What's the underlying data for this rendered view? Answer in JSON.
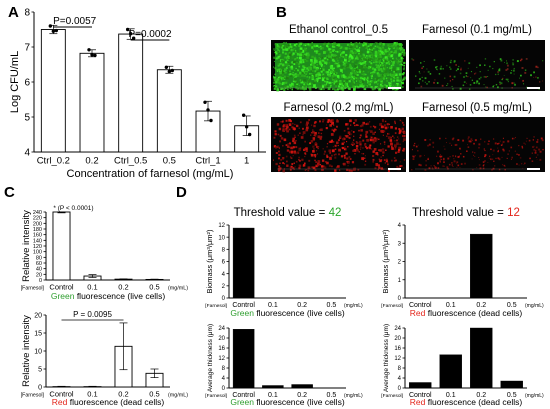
{
  "panel_letters": {
    "A": "A",
    "B": "B",
    "C": "C",
    "D": "D"
  },
  "chart_data": [
    {
      "id": "A",
      "type": "bar",
      "categories": [
        "Ctrl_0.2",
        "0.2",
        "Ctrl_0.5",
        "0.5",
        "Ctrl_1",
        "1"
      ],
      "values": [
        7.5,
        6.82,
        7.37,
        6.35,
        5.17,
        4.75
      ],
      "errors": [
        0.12,
        0.1,
        0.15,
        0.1,
        0.28,
        0.28
      ],
      "points": [
        [
          7.6,
          7.45,
          7.47
        ],
        [
          6.92,
          6.78,
          6.76
        ],
        [
          7.5,
          7.38,
          7.25
        ],
        [
          6.42,
          6.3,
          6.33
        ],
        [
          5.42,
          5.2,
          4.9
        ],
        [
          5.05,
          4.72,
          4.5
        ]
      ],
      "xlabel": "Concentration of farnesol (mg/mL)",
      "ylabel": "Log CFU/mL",
      "ylim": [
        4,
        8
      ],
      "yticks": [
        4,
        5,
        6,
        7,
        8
      ],
      "annotations": [
        "P=0.0057",
        "P=0.0002"
      ]
    },
    {
      "id": "C-top",
      "type": "bar",
      "prefix": "[Farnesol]",
      "categories": [
        "Control",
        "0.1",
        "0.2",
        "0.5"
      ],
      "unit": "(mg/mL)",
      "values": [
        240,
        14,
        3,
        2
      ],
      "errors": [
        3,
        5,
        1,
        1
      ],
      "ylabel": "Relative intensity",
      "ylim": [
        0,
        240
      ],
      "yticks": [
        0,
        20,
        40,
        60,
        80,
        100,
        120,
        140,
        160,
        180,
        200,
        220,
        240
      ],
      "xlabel_colored": "Green",
      "xlabel_rest": " fluorescence (live cells)",
      "annotation": "* (P < 0.0001)"
    },
    {
      "id": "C-bottom",
      "type": "bar",
      "prefix": "[Farnesol]",
      "categories": [
        "Control",
        "0.1",
        "0.2",
        "0.5"
      ],
      "unit": "(mg/mL)",
      "values": [
        0.1,
        0.1,
        11.3,
        3.8
      ],
      "errors": [
        0.1,
        0.1,
        6.5,
        1.2
      ],
      "ylabel": "Relative intensity",
      "ylim": [
        0,
        20
      ],
      "yticks": [
        0,
        5,
        10,
        15,
        20
      ],
      "xlabel_colored": "Red",
      "xlabel_rest": " fluorescence (dead cells)",
      "annotation": "P = 0.0095"
    },
    {
      "id": "D-left-top",
      "type": "bar",
      "title_prefix": "Threshold value = ",
      "title_value": "42",
      "prefix": "[Farnesol]",
      "categories": [
        "Control",
        "0.1",
        "0.2",
        "0.5"
      ],
      "unit": "(mg/mL)",
      "values": [
        11.5,
        0.0,
        0.0,
        0.0
      ],
      "ylabel": "Biomass (μm³/μm²)",
      "ylim": [
        0,
        12
      ],
      "yticks": [
        0,
        2,
        4,
        6,
        8,
        10,
        12
      ],
      "xlabel_colored": "Green",
      "xlabel_rest": " fluorescence (live cells)"
    },
    {
      "id": "D-left-bottom",
      "type": "bar",
      "prefix": "[Farnesol]",
      "categories": [
        "Control",
        "0.1",
        "0.2",
        "0.5"
      ],
      "unit": "(mg/mL)",
      "values": [
        23.5,
        1.0,
        1.4,
        0.0
      ],
      "ylabel": "Average thickness (μm)",
      "ylim": [
        0,
        24
      ],
      "yticks": [
        0,
        4,
        8,
        12,
        16,
        20,
        24
      ],
      "xlabel_colored": "Green",
      "xlabel_rest": " fluorescence (live cells)"
    },
    {
      "id": "D-right-top",
      "type": "bar",
      "title_prefix": "Threshold value = ",
      "title_value": "12",
      "prefix": "[Farnesol]",
      "categories": [
        "Control",
        "0.1",
        "0.2",
        "0.5"
      ],
      "unit": "(mg/mL)",
      "values": [
        0.0,
        0.0,
        3.5,
        0.0
      ],
      "ylabel": "Biomass (μm³/μm²)",
      "ylim": [
        0,
        4
      ],
      "yticks": [
        0,
        1,
        2,
        3,
        4
      ],
      "xlabel_colored": "Red",
      "xlabel_rest": " fluorescence (dead cells)"
    },
    {
      "id": "D-right-bottom",
      "type": "bar",
      "prefix": "[Farnesol]",
      "categories": [
        "Control",
        "0.1",
        "0.2",
        "0.5"
      ],
      "unit": "(mg/mL)",
      "values": [
        2.2,
        13.3,
        24.0,
        2.8
      ],
      "ylabel": "Average thickness (μm)",
      "ylim": [
        0,
        24
      ],
      "yticks": [
        0,
        4,
        8,
        12,
        16,
        20,
        24
      ],
      "xlabel_colored": "Red",
      "xlabel_rest": " fluorescence (dead cells)"
    }
  ],
  "micrographs": [
    {
      "label": "Ethanol  control_0.5",
      "fill": "green-dense"
    },
    {
      "label": "Farnesol  (0.1 mg/mL)",
      "fill": "green-sparse"
    },
    {
      "label": "Farnesol  (0.2 mg/mL)",
      "fill": "red-dense"
    },
    {
      "label": "Farnesol  (0.5 mg/mL)",
      "fill": "red-sparse"
    }
  ],
  "colors": {
    "green": "#2e9e2e",
    "red": "#e3261c",
    "green_title": "#2aa52a",
    "red_title": "#e3261c",
    "bar_dark": "#000000",
    "bar_white": "#ffffff"
  }
}
